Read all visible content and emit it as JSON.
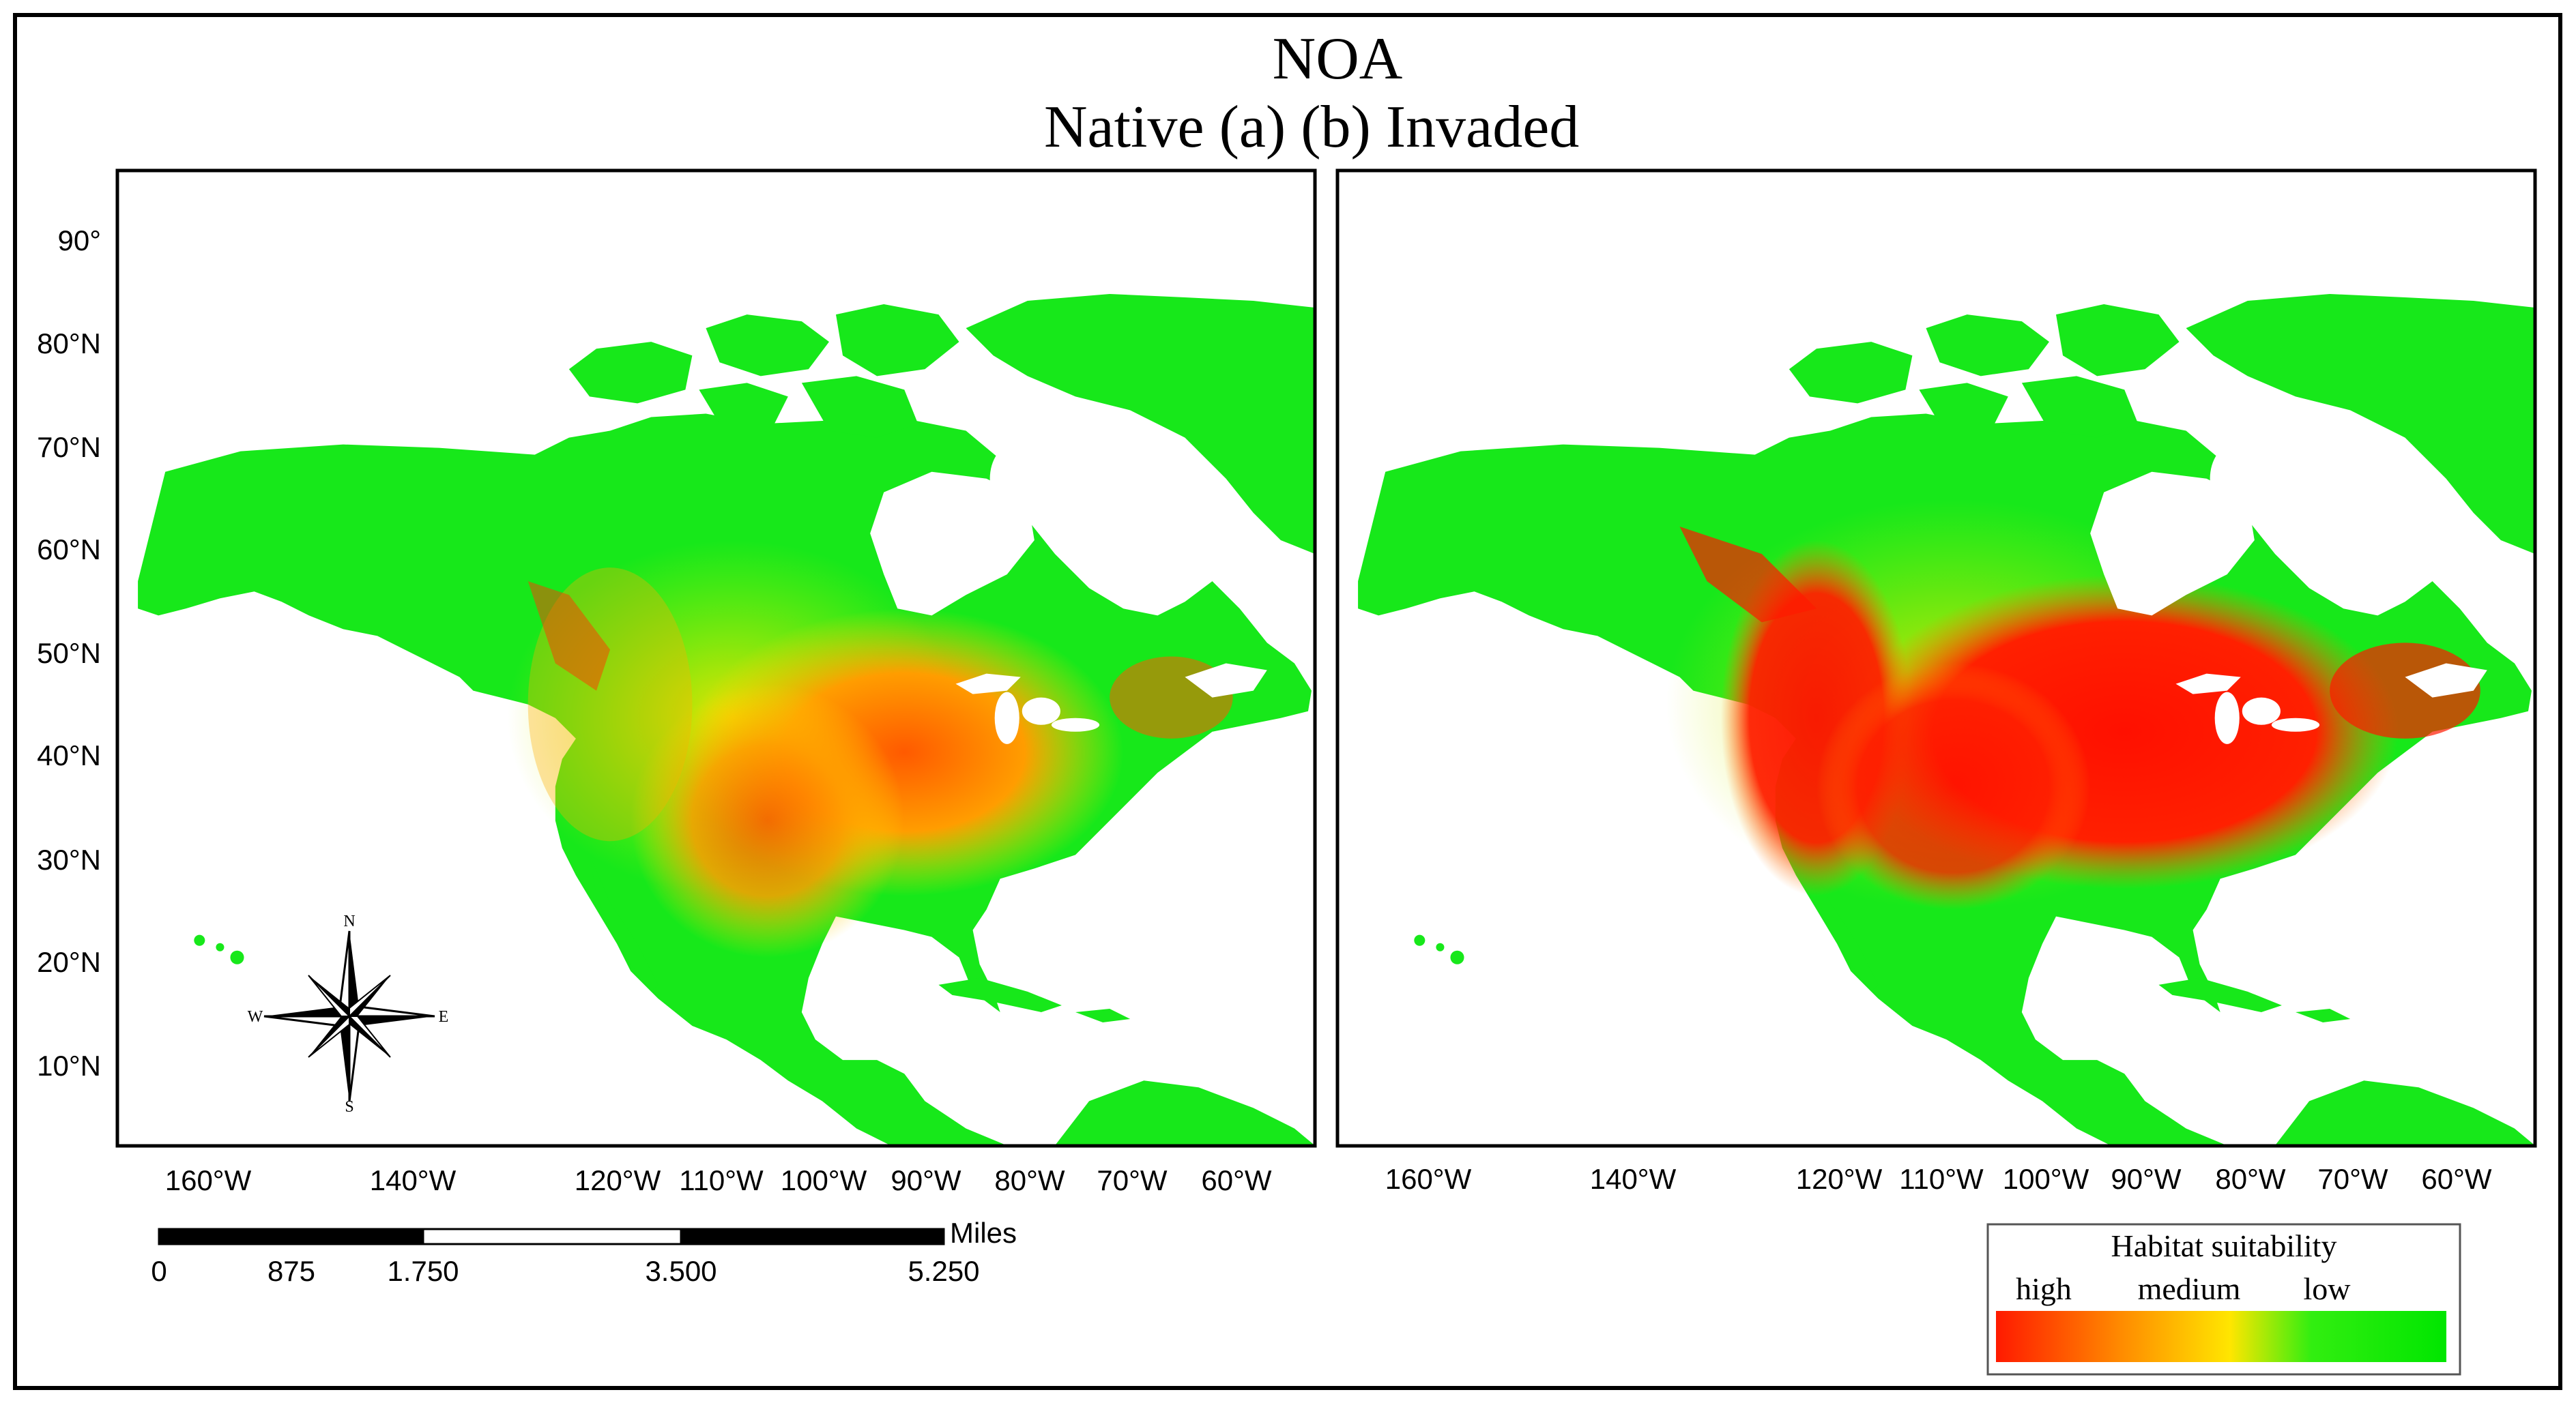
{
  "title": {
    "line1": "NOA",
    "line2": "Native (a) (b) Invaded"
  },
  "latitude_labels": [
    "90°",
    "80°N",
    "70°N",
    "60°N",
    "50°N",
    "40°N",
    "30°N",
    "20°N",
    "10°N"
  ],
  "longitude_labels": [
    "160°W",
    "140°W",
    "120°W",
    "110°W",
    "100°W",
    "90°W",
    "80°W",
    "70°W",
    "60°W"
  ],
  "scalebar": {
    "unit": "Miles",
    "ticks": [
      "0",
      "875",
      "1.750",
      "3.500",
      "5.250"
    ]
  },
  "compass": {
    "n": "N",
    "s": "S",
    "e": "E",
    "w": "W"
  },
  "legend": {
    "title": "Habitat suitability",
    "high": "high",
    "medium": "medium",
    "low": "low",
    "gradient_colors": [
      "#ff1a00",
      "#ff8c00",
      "#ffe600",
      "#32ee10",
      "#00e600"
    ]
  },
  "colors": {
    "land_low": "#17e81a",
    "suitability_high": "#ff1200",
    "suitability_mid": "#ff8c00"
  },
  "maps": [
    {
      "id": "native",
      "label": "(a) Native"
    },
    {
      "id": "invaded",
      "label": "(b) Invaded"
    }
  ]
}
